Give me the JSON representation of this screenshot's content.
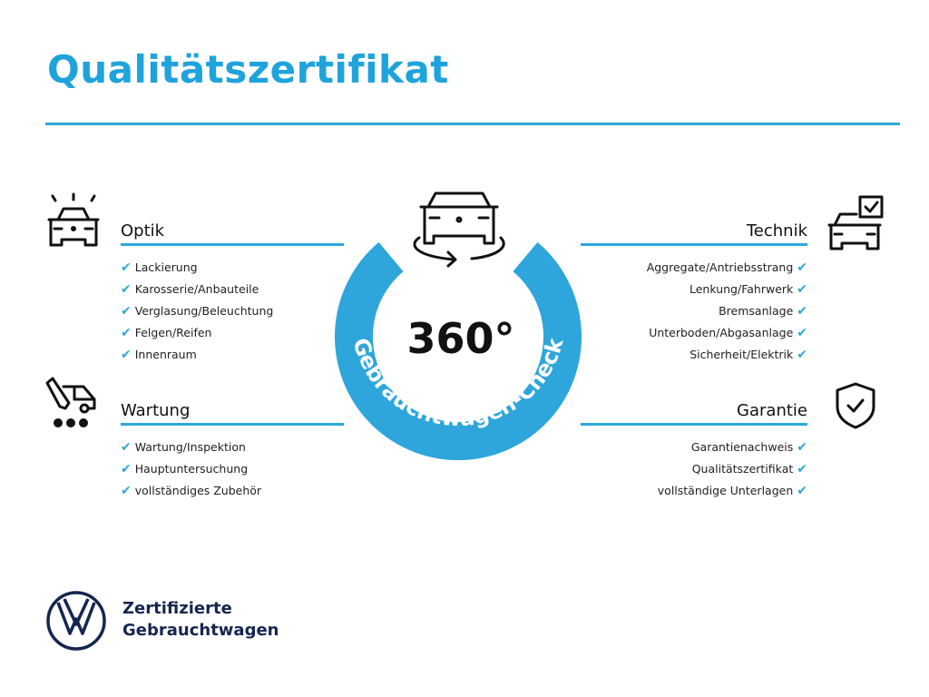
{
  "title": "Qualitätszertifikat",
  "colors": {
    "accent": "#2ea6dc",
    "brand": "#15264f"
  },
  "center": {
    "degrees": "360°",
    "ring_text": "Gebrauchtwagen-Check",
    "icon": "rotating-car-icon"
  },
  "sections": {
    "optik": {
      "label": "Optik",
      "icon": "car-lights-icon",
      "items": [
        "Lackierung",
        "Karosserie/Anbauteile",
        "Verglasung/Beleuchtung",
        "Felgen/Reifen",
        "Innenraum"
      ]
    },
    "wartung": {
      "label": "Wartung",
      "icon": "service-truck-icon",
      "items": [
        "Wartung/Inspektion",
        "Hauptuntersuchung",
        "vollständiges Zubehör"
      ]
    },
    "technik": {
      "label": "Technik",
      "icon": "car-checklist-icon",
      "items": [
        "Aggregate/Antriebsstrang",
        "Lenkung/Fahrwerk",
        "Bremsanlage",
        "Unterboden/Abgasanlage",
        "Sicherheit/Elektrik"
      ]
    },
    "garantie": {
      "label": "Garantie",
      "icon": "shield-check-icon",
      "items": [
        "Garantienachweis",
        "Qualitätszertifikat",
        "vollständige Unterlagen"
      ]
    }
  },
  "check_glyph": "✔",
  "footer": {
    "line1": "Zertifizierte",
    "line2": "Gebrauchtwagen",
    "logo": "vw-logo"
  }
}
